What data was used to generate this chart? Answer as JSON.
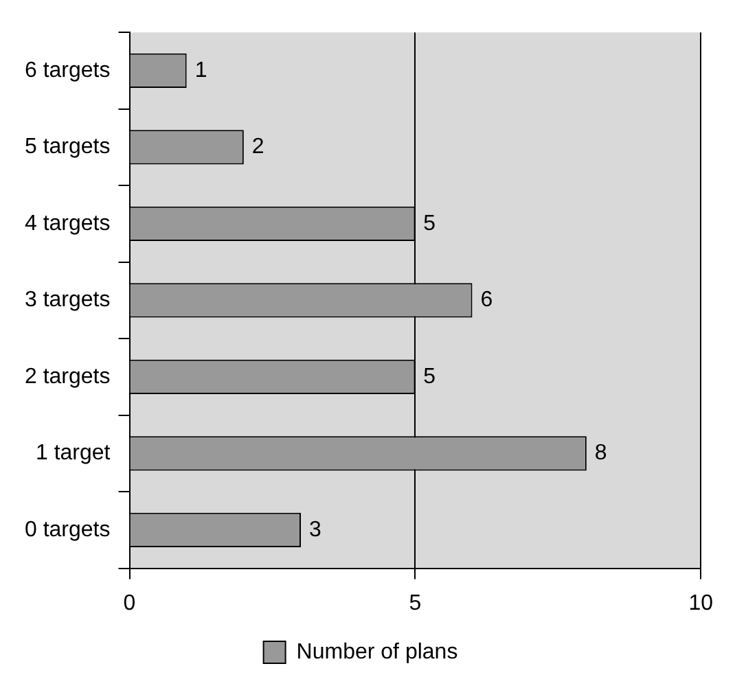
{
  "chart_data": {
    "type": "bar",
    "orientation": "horizontal",
    "categories": [
      "6 targets",
      "5 targets",
      "4 targets",
      "3 targets",
      "2 targets",
      "1 target",
      "0 targets"
    ],
    "series": [
      {
        "name": "Number of plans",
        "color": "#999999",
        "values": [
          1,
          2,
          5,
          6,
          5,
          8,
          3
        ]
      }
    ],
    "xlim": [
      0,
      10
    ],
    "xticks": [
      0,
      5,
      10
    ],
    "grid": "x",
    "legend": "bottom",
    "data_labels": true
  }
}
